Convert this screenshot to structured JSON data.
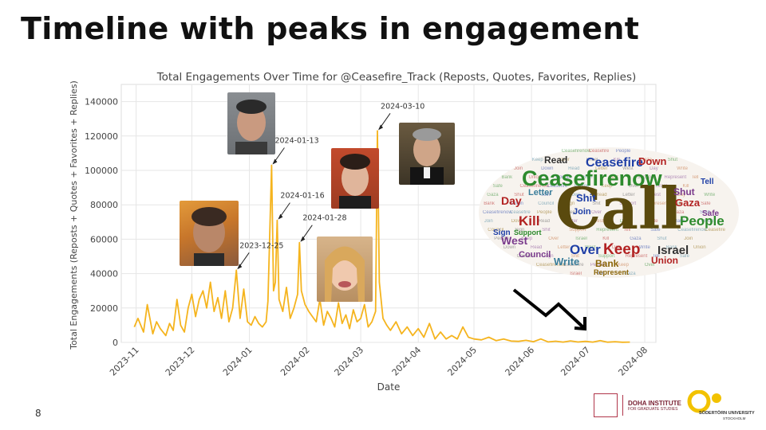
{
  "slide": {
    "title": "Timeline with peaks in engagement",
    "page_number": "8"
  },
  "logos": {
    "doha_line1": "DOHA INSTITUTE",
    "doha_line2": "FOR GRADUATE STUDIES",
    "sodertorn_line1": "SÖDERTÖRN UNIVERSITY",
    "sodertorn_line2": "STOCKHOLM"
  },
  "wordcloud": {
    "main_word": "Call",
    "words": [
      "Ceasefirenow",
      "Ceasefire",
      "People",
      "Keep",
      "Over",
      "Israel",
      "Kill",
      "Gaza",
      "Shut",
      "Join",
      "Down",
      "Read",
      "Letter",
      "West",
      "Day",
      "Write",
      "Bank",
      "Union",
      "Council",
      "Sign",
      "Shit",
      "Support",
      "Represent",
      "Tell",
      "Safe"
    ],
    "colors": [
      "#2d8a2d",
      "#b22222",
      "#1f3fa6",
      "#3a7d9a",
      "#8b6508",
      "#5a5a5a",
      "#7a3b8c",
      "#c0662e"
    ]
  },
  "annotations": {
    "arrow": "down-right-trend-arrow"
  },
  "chart_data": {
    "type": "line",
    "title": "Total Engagements Over Time for @Ceasefire_Track (Reposts, Quotes, Favorites, Replies)",
    "xlabel": "Date",
    "ylabel": "Total Engagements (Reposts + Quotes + Favorites + Replies)",
    "ylim": [
      0,
      150000
    ],
    "yticks": [
      0,
      20000,
      40000,
      60000,
      80000,
      100000,
      120000,
      140000
    ],
    "xlim": [
      "2023-10-24",
      "2024-08-07"
    ],
    "xticks": [
      "2023-11",
      "2023-12",
      "2024-01",
      "2024-02",
      "2024-03",
      "2024-04",
      "2024-05",
      "2024-06",
      "2024-07",
      "2024-08"
    ],
    "grid": true,
    "line_color": "#f5b41e",
    "series": [
      {
        "x": [
          "2023-10-31",
          "2023-11-02",
          "2023-11-05",
          "2023-11-07",
          "2023-11-10",
          "2023-11-12",
          "2023-11-14",
          "2023-11-17",
          "2023-11-19",
          "2023-11-21",
          "2023-11-23",
          "2023-11-25",
          "2023-11-27",
          "2023-11-29",
          "2023-12-01",
          "2023-12-03",
          "2023-12-05",
          "2023-12-07",
          "2023-12-09",
          "2023-12-11",
          "2023-12-13",
          "2023-12-15",
          "2023-12-17",
          "2023-12-19",
          "2023-12-21",
          "2023-12-23",
          "2023-12-25",
          "2023-12-27",
          "2023-12-29",
          "2023-12-31",
          "2024-01-02",
          "2024-01-04",
          "2024-01-06",
          "2024-01-08",
          "2024-01-10",
          "2024-01-11",
          "2024-01-13",
          "2024-01-14",
          "2024-01-15",
          "2024-01-16",
          "2024-01-17",
          "2024-01-19",
          "2024-01-21",
          "2024-01-23",
          "2024-01-25",
          "2024-01-27",
          "2024-01-28",
          "2024-01-29",
          "2024-01-31",
          "2024-02-02",
          "2024-02-04",
          "2024-02-06",
          "2024-02-08",
          "2024-02-10",
          "2024-02-12",
          "2024-02-14",
          "2024-02-16",
          "2024-02-18",
          "2024-02-20",
          "2024-02-22",
          "2024-02-24",
          "2024-02-26",
          "2024-02-28",
          "2024-03-01",
          "2024-03-03",
          "2024-03-05",
          "2024-03-07",
          "2024-03-09",
          "2024-03-10",
          "2024-03-11",
          "2024-03-13",
          "2024-03-15",
          "2024-03-17",
          "2024-03-20",
          "2024-03-23",
          "2024-03-26",
          "2024-03-29",
          "2024-04-01",
          "2024-04-04",
          "2024-04-07",
          "2024-04-10",
          "2024-04-13",
          "2024-04-16",
          "2024-04-19",
          "2024-04-22",
          "2024-04-25",
          "2024-04-28",
          "2024-05-01",
          "2024-05-05",
          "2024-05-09",
          "2024-05-13",
          "2024-05-17",
          "2024-05-21",
          "2024-05-25",
          "2024-05-29",
          "2024-06-02",
          "2024-06-06",
          "2024-06-10",
          "2024-06-14",
          "2024-06-18",
          "2024-06-22",
          "2024-06-26",
          "2024-06-30",
          "2024-07-04",
          "2024-07-08",
          "2024-07-12",
          "2024-07-16",
          "2024-07-20",
          "2024-07-24"
        ],
        "values": [
          9000,
          14000,
          6000,
          22000,
          5000,
          12000,
          8000,
          4000,
          11000,
          7000,
          25000,
          10000,
          6000,
          20000,
          28000,
          15000,
          25000,
          30000,
          20000,
          35000,
          18000,
          26000,
          14000,
          30000,
          12000,
          20000,
          42000,
          14000,
          31000,
          12000,
          10000,
          15000,
          11000,
          9000,
          12000,
          24000,
          103000,
          30000,
          35000,
          71000,
          25000,
          18000,
          32000,
          14000,
          20000,
          28000,
          58000,
          30000,
          22000,
          18000,
          15000,
          12000,
          25000,
          10000,
          18000,
          14000,
          9000,
          23000,
          11000,
          16000,
          8000,
          19000,
          12000,
          14000,
          22000,
          9000,
          12000,
          18000,
          123000,
          35000,
          14000,
          10000,
          7000,
          12000,
          5000,
          9000,
          4000,
          8000,
          3000,
          11000,
          2000,
          6000,
          2000,
          4000,
          2000,
          9000,
          3000,
          2000,
          1500,
          3000,
          1000,
          2000,
          800,
          600,
          1200,
          400,
          2000,
          300,
          700,
          200,
          900,
          250,
          600,
          200,
          1000,
          150,
          400,
          100,
          200
        ]
      }
    ],
    "peak_labels": [
      {
        "date": "2023-12-25",
        "label": "2023-12-25"
      },
      {
        "date": "2024-01-13",
        "label": "2024-01-13"
      },
      {
        "date": "2024-01-16",
        "label": "2024-01-16"
      },
      {
        "date": "2024-01-28",
        "label": "2024-01-28"
      },
      {
        "date": "2024-03-10",
        "label": "2024-03-10"
      }
    ]
  }
}
